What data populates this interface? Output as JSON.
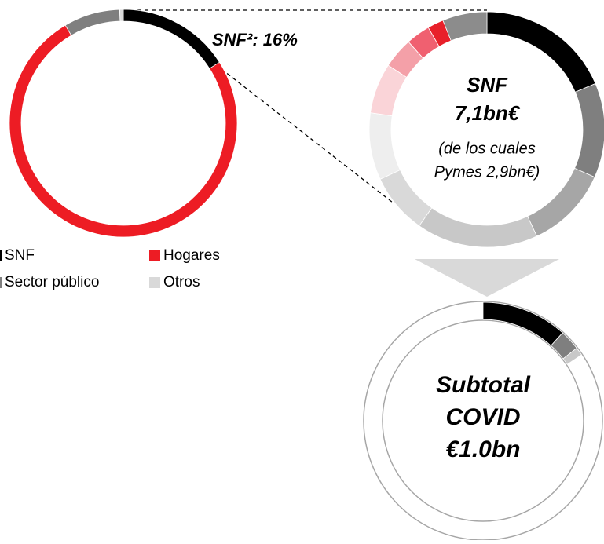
{
  "chart_data": [
    {
      "type": "donut",
      "categories": [
        "SNF",
        "Hogares",
        "Sector público",
        "Otros"
      ],
      "values": [
        16,
        75.5,
        8,
        0.5
      ],
      "value_labels": [
        "SNF²: 16%",
        null,
        null,
        null
      ],
      "colors": [
        "#000000",
        "#ed1c24",
        "#7f7f7f",
        "#d9d9d9"
      ]
    },
    {
      "type": "donut",
      "center_text": [
        "SNF",
        "7,1bn€",
        "(de los cuales",
        "Pymes 2,9bn€)"
      ],
      "values": [
        18.6,
        13,
        11.4,
        16.7,
        8.3,
        9.2,
        6.9,
        4.2,
        3.3,
        2.2,
        6.1
      ],
      "colors": [
        "#000000",
        "#7f7f7f",
        "#a6a6a6",
        "#c8c8c8",
        "#d9d9d9",
        "#eeeeee",
        "#fad4d8",
        "#f4a0a8",
        "#f06070",
        "#e8202a",
        "#8c8c8c"
      ]
    },
    {
      "type": "donut",
      "center_text": [
        "Subtotal",
        "COVID",
        "€1.0bn"
      ],
      "values": [
        11.7,
        2.8,
        1.1,
        84.4
      ],
      "colors": [
        "#000000",
        "#7f7f7f",
        "#c8c8c8",
        "#ffffff"
      ]
    }
  ]
}
